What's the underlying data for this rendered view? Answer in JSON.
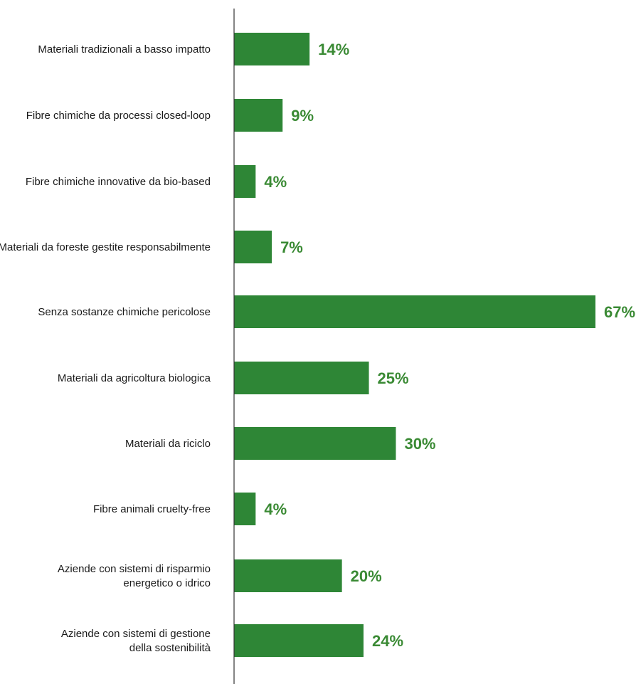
{
  "chart_data": {
    "type": "bar",
    "orientation": "horizontal",
    "categories": [
      [
        "Materiali tradizionali a basso impatto"
      ],
      [
        "Fibre chimiche da processi closed-loop"
      ],
      [
        "Fibre chimiche  innovative da bio-based"
      ],
      [
        "Materiali da foreste gestite responsabilmente"
      ],
      [
        "Senza sostanze chimiche pericolose"
      ],
      [
        "Materiali da agricoltura biologica"
      ],
      [
        "Materiali da riciclo"
      ],
      [
        "Fibre animali cruelty-free"
      ],
      [
        "Aziende con sistemi di risparmio",
        "energetico o idrico"
      ],
      [
        "Aziende con sistemi di gestione",
        "della sostenibilità"
      ]
    ],
    "values": [
      14,
      9,
      4,
      7,
      67,
      25,
      30,
      4,
      20,
      24
    ],
    "value_labels": [
      "14%",
      "9%",
      "4%",
      "7%",
      "67%",
      "25%",
      "30%",
      "4%",
      "20%",
      "24%"
    ],
    "unit": "%",
    "xlim": [
      0,
      67
    ],
    "title": "",
    "xlabel": "",
    "ylabel": "",
    "grid": false,
    "legend": "none",
    "colors": {
      "bar": "#2e8636",
      "value_text": "#3a8a34",
      "axis": "#333333",
      "label_text": "#1a1a1a"
    }
  }
}
